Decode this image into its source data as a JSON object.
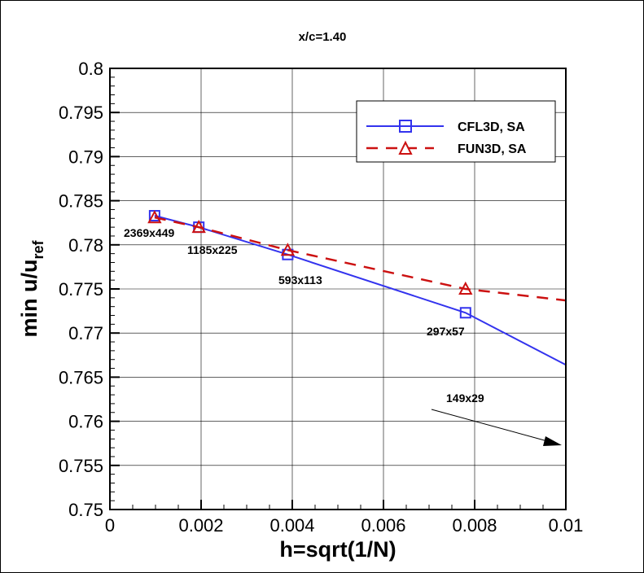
{
  "chart_data": {
    "type": "line",
    "title": "x/c=1.40",
    "xlabel": "h=sqrt(1/N)",
    "ylabel_main": "min u/u",
    "ylabel_sub": "ref",
    "xlim": [
      0,
      0.01
    ],
    "ylim": [
      0.75,
      0.8
    ],
    "xticks": [
      "0",
      "0.002",
      "0.004",
      "0.006",
      "0.008",
      "0.01"
    ],
    "yticks": [
      "0.75",
      "0.755",
      "0.76",
      "0.765",
      "0.77",
      "0.775",
      "0.78",
      "0.785",
      "0.79",
      "0.795",
      "0.8"
    ],
    "grid": true,
    "legend_position": "top-right",
    "series": [
      {
        "name": "CFL3D, SA",
        "color": "#3333ee",
        "style": "solid",
        "marker": "square",
        "x": [
          0.00098,
          0.00195,
          0.0039,
          0.0078
        ],
        "y": [
          0.7833,
          0.782,
          0.7789,
          0.7723
        ],
        "line_extends_to": {
          "x": 0.01,
          "y": 0.7664
        }
      },
      {
        "name": "FUN3D, SA",
        "color": "#cc1111",
        "style": "dashed",
        "marker": "triangle",
        "x": [
          0.00098,
          0.00195,
          0.0039,
          0.0078
        ],
        "y": [
          0.7831,
          0.782,
          0.7794,
          0.775
        ],
        "line_extends_to": {
          "x": 0.01,
          "y": 0.7737
        }
      }
    ],
    "annotations": [
      "2369x449",
      "1185x225",
      "593x113",
      "297x57",
      "149x29"
    ]
  }
}
